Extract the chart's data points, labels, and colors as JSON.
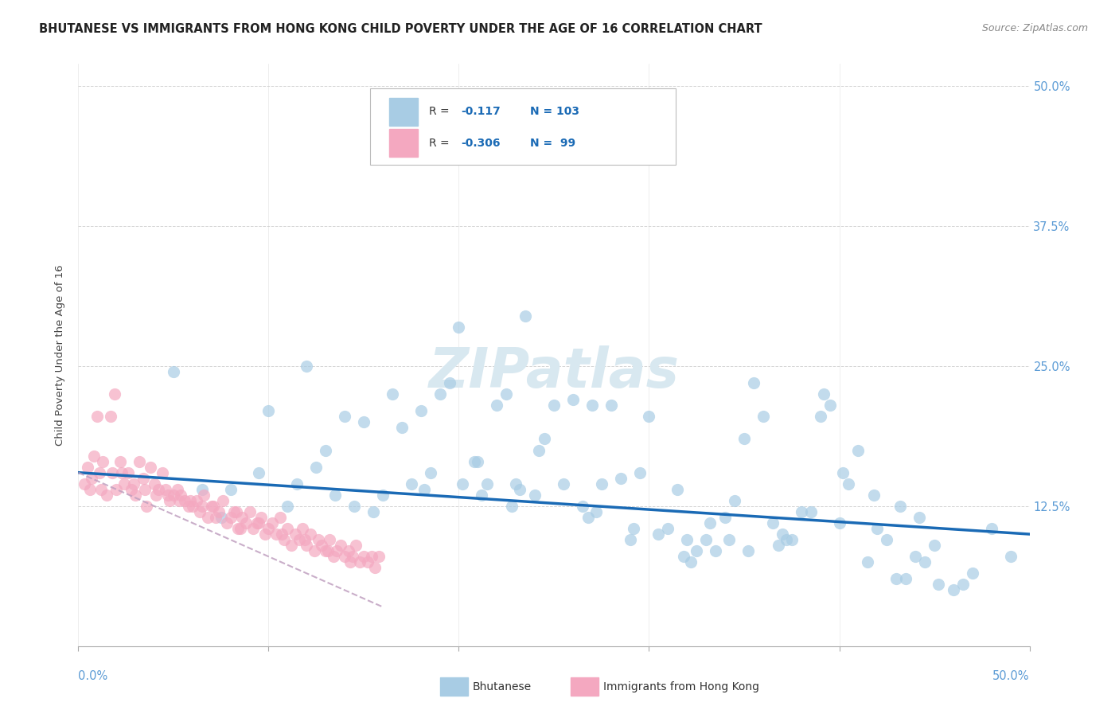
{
  "title": "BHUTANESE VS IMMIGRANTS FROM HONG KONG CHILD POVERTY UNDER THE AGE OF 16 CORRELATION CHART",
  "source": "Source: ZipAtlas.com",
  "ylabel": "Child Poverty Under the Age of 16",
  "xlim": [
    0,
    50
  ],
  "ylim": [
    0,
    52
  ],
  "blue_color": "#a8cce4",
  "pink_color": "#f4a8c0",
  "blue_line_color": "#1a6ab5",
  "pink_line_color": "#c0a0c0",
  "right_axis_color": "#5b9bd5",
  "watermark_color": "#d8e8f0",
  "bg_color": "#ffffff",
  "grid_color": "#d0d0d0",
  "blue_scatter_x": [
    20.5,
    10.0,
    12.5,
    5.0,
    15.0,
    16.5,
    8.0,
    18.0,
    20.0,
    22.0,
    17.0,
    13.0,
    19.5,
    14.0,
    21.0,
    25.0,
    23.5,
    26.0,
    24.0,
    28.0,
    30.0,
    27.5,
    29.0,
    31.5,
    32.0,
    33.0,
    34.0,
    35.0,
    36.0,
    37.0,
    38.0,
    39.0,
    40.0,
    41.0,
    42.0,
    43.0,
    44.0,
    45.0,
    46.0,
    48.0,
    22.5,
    24.5,
    26.5,
    18.5,
    20.8,
    23.0,
    27.0,
    29.5,
    31.0,
    33.5,
    35.5,
    37.5,
    39.5,
    41.5,
    43.5,
    47.0,
    49.0,
    16.0,
    14.5,
    11.5,
    9.5,
    7.5,
    6.5,
    19.0,
    21.5,
    25.5,
    28.5,
    30.5,
    32.5,
    34.5,
    36.5,
    38.5,
    40.5,
    42.5,
    44.5,
    46.5,
    17.5,
    22.8,
    26.8,
    31.8,
    36.8,
    41.8,
    15.5,
    24.2,
    29.2,
    34.2,
    39.2,
    44.2,
    12.0,
    23.2,
    27.2,
    32.2,
    37.2,
    13.5,
    21.2,
    35.2,
    40.2,
    45.2,
    11.0,
    20.2,
    18.2,
    33.2,
    43.2
  ],
  "blue_scatter_y": [
    45.0,
    21.0,
    16.0,
    24.5,
    20.0,
    22.5,
    14.0,
    21.0,
    28.5,
    21.5,
    19.5,
    17.5,
    23.5,
    20.5,
    16.5,
    21.5,
    29.5,
    22.0,
    13.5,
    21.5,
    20.5,
    14.5,
    9.5,
    14.0,
    9.5,
    9.5,
    11.5,
    18.5,
    20.5,
    10.0,
    12.0,
    20.5,
    11.0,
    17.5,
    10.5,
    6.0,
    8.0,
    9.0,
    5.0,
    10.5,
    22.5,
    18.5,
    12.5,
    15.5,
    16.5,
    14.5,
    21.5,
    15.5,
    10.5,
    8.5,
    23.5,
    9.5,
    21.5,
    7.5,
    6.0,
    6.5,
    8.0,
    13.5,
    12.5,
    14.5,
    15.5,
    11.5,
    14.0,
    22.5,
    14.5,
    14.5,
    15.0,
    10.0,
    8.5,
    13.0,
    11.0,
    12.0,
    14.5,
    9.5,
    7.5,
    5.5,
    14.5,
    12.5,
    11.5,
    8.0,
    9.0,
    13.5,
    12.0,
    17.5,
    10.5,
    9.5,
    22.5,
    11.5,
    25.0,
    14.0,
    12.0,
    7.5,
    9.5,
    13.5,
    13.5,
    8.5,
    15.5,
    5.5,
    12.5,
    14.5,
    14.0,
    11.0,
    12.5
  ],
  "pink_scatter_x": [
    0.3,
    0.5,
    0.6,
    0.8,
    1.0,
    1.1,
    1.3,
    1.5,
    1.7,
    1.9,
    2.0,
    2.2,
    2.4,
    2.6,
    2.8,
    3.0,
    3.2,
    3.4,
    3.6,
    3.8,
    4.0,
    4.2,
    4.4,
    4.6,
    4.8,
    5.0,
    5.2,
    5.4,
    5.6,
    5.8,
    6.0,
    6.2,
    6.4,
    6.6,
    6.8,
    7.0,
    7.2,
    7.4,
    7.6,
    7.8,
    8.0,
    8.2,
    8.4,
    8.6,
    8.8,
    9.0,
    9.2,
    9.4,
    9.6,
    9.8,
    10.0,
    10.2,
    10.4,
    10.6,
    10.8,
    11.0,
    11.2,
    11.4,
    11.6,
    11.8,
    12.0,
    12.2,
    12.4,
    12.6,
    12.8,
    13.0,
    13.2,
    13.4,
    13.6,
    13.8,
    14.0,
    14.2,
    14.4,
    14.6,
    14.8,
    15.0,
    15.2,
    15.4,
    15.6,
    15.8,
    1.2,
    2.3,
    3.5,
    4.7,
    5.9,
    7.1,
    8.3,
    9.5,
    10.7,
    11.9,
    13.1,
    14.3,
    0.7,
    1.8,
    2.9,
    4.1,
    5.3,
    6.5,
    8.5
  ],
  "pink_scatter_y": [
    14.5,
    16.0,
    14.0,
    17.0,
    20.5,
    15.5,
    16.5,
    13.5,
    20.5,
    22.5,
    14.0,
    16.5,
    14.5,
    15.5,
    14.0,
    13.5,
    16.5,
    15.0,
    12.5,
    16.0,
    14.5,
    14.0,
    15.5,
    14.0,
    13.0,
    13.5,
    14.0,
    13.5,
    13.0,
    12.5,
    12.5,
    13.0,
    12.0,
    13.5,
    11.5,
    12.5,
    11.5,
    12.0,
    13.0,
    11.0,
    11.5,
    12.0,
    10.5,
    11.5,
    11.0,
    12.0,
    10.5,
    11.0,
    11.5,
    10.0,
    10.5,
    11.0,
    10.0,
    11.5,
    9.5,
    10.5,
    9.0,
    10.0,
    9.5,
    10.5,
    9.0,
    10.0,
    8.5,
    9.5,
    9.0,
    8.5,
    9.5,
    8.0,
    8.5,
    9.0,
    8.0,
    8.5,
    8.0,
    9.0,
    7.5,
    8.0,
    7.5,
    8.0,
    7.0,
    8.0,
    14.0,
    15.5,
    14.0,
    13.5,
    13.0,
    12.5,
    12.0,
    11.0,
    10.0,
    9.5,
    8.5,
    7.5,
    15.0,
    15.5,
    14.5,
    13.5,
    13.0,
    12.5,
    10.5
  ],
  "blue_trend_x": [
    0,
    50
  ],
  "blue_trend_y": [
    15.5,
    10.0
  ],
  "pink_trend_x": [
    0,
    16
  ],
  "pink_trend_y": [
    15.5,
    3.5
  ],
  "blue_trend_end_y": 10.0,
  "pink_trend_end_y": 3.5
}
